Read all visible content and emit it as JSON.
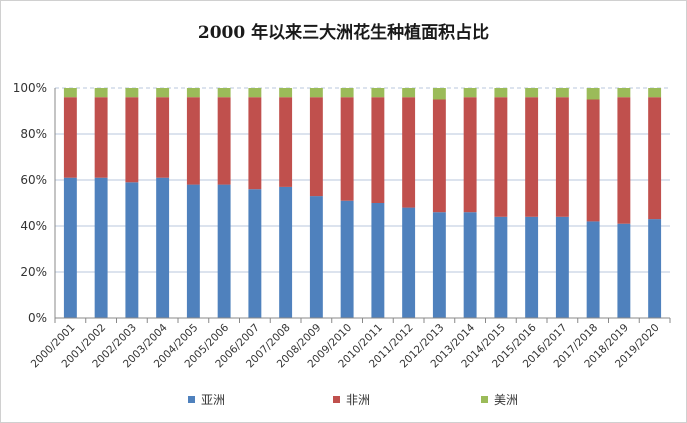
{
  "chart_data": {
    "type": "bar",
    "stacked": true,
    "title": "2000 年以来三大洲花生种植面积占比",
    "xlabel": "",
    "ylabel": "",
    "ylim": [
      0,
      100
    ],
    "y_ticks": [
      "0%",
      "20%",
      "40%",
      "60%",
      "80%",
      "100%"
    ],
    "categories": [
      "2000/2001",
      "2001/2002",
      "2002/2003",
      "2003/2004",
      "2004/2005",
      "2005/2006",
      "2006/2007",
      "2007/2008",
      "2008/2009",
      "2009/2010",
      "2010/2011",
      "2011/2012",
      "2012/2013",
      "2013/2014",
      "2014/2015",
      "2015/2016",
      "2016/2017",
      "2017/2018",
      "2018/2019",
      "2019/2020"
    ],
    "series": [
      {
        "name": "亚洲",
        "color": "#4f81bd",
        "values": [
          61,
          61,
          59,
          61,
          58,
          58,
          56,
          57,
          53,
          51,
          50,
          48,
          46,
          46,
          44,
          44,
          44,
          42,
          41,
          43
        ]
      },
      {
        "name": "非洲",
        "color": "#c0504d",
        "values": [
          35,
          35,
          37,
          35,
          38,
          38,
          40,
          39,
          43,
          45,
          46,
          48,
          49,
          50,
          52,
          52,
          52,
          53,
          55,
          53
        ]
      },
      {
        "name": "美洲",
        "color": "#9bbb59",
        "values": [
          4,
          4,
          4,
          4,
          4,
          4,
          4,
          4,
          4,
          4,
          4,
          4,
          5,
          4,
          4,
          4,
          4,
          5,
          4,
          4
        ]
      }
    ],
    "grid": true,
    "legend_position": "bottom"
  }
}
